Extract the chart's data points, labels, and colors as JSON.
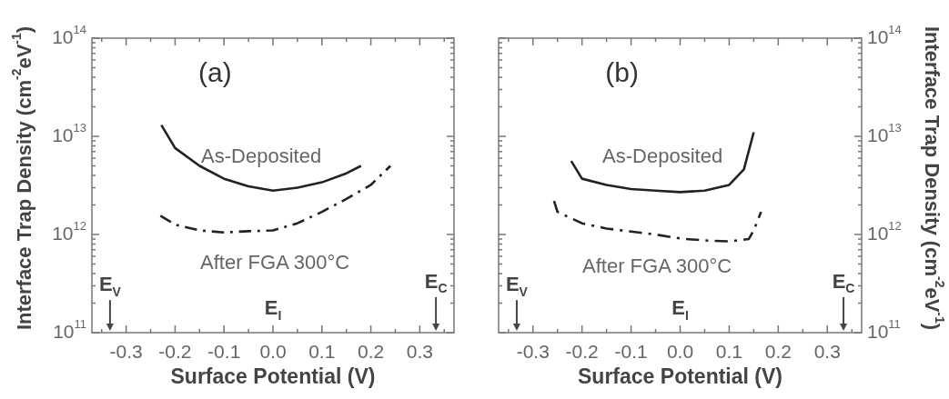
{
  "chart_data": [
    {
      "type": "line",
      "title": "(a)",
      "xlabel": "Surface Potential (V)",
      "ylabel": "Interface Trap Density (cm$^{-2}$eV$^{-1}$)",
      "log": "y",
      "xlim": [
        -0.37,
        0.37
      ],
      "xticks": [
        {
          "value": -0.35,
          "label": null
        },
        -0.3,
        {
          "value": -0.25,
          "label": null
        },
        -0.2,
        {
          "value": -0.15,
          "label": null
        },
        -0.1,
        {
          "value": -0.05,
          "label": null
        },
        {
          "value": 0,
          "label": "0.0"
        },
        {
          "value": 0.05,
          "label": null
        },
        0.1,
        {
          "value": 0.15,
          "label": null
        },
        0.2,
        {
          "value": 0.25,
          "label": null
        },
        0.3,
        {
          "value": 0.35,
          "label": null
        }
      ],
      "ylim": [
        100000000000.0,
        100000000000000.0
      ],
      "yticks": [
        {
          "value": 100000000000.0,
          "label": "10$^{11}$"
        },
        {
          "value": 200000000000.0,
          "label": null
        },
        {
          "value": 300000000000.0,
          "label": null
        },
        {
          "value": 400000000000.0,
          "label": null
        },
        {
          "value": 500000000000.0,
          "label": null
        },
        {
          "value": 600000000000.0,
          "label": null
        },
        {
          "value": 700000000000.0,
          "label": null
        },
        {
          "value": 800000000000.0,
          "label": null
        },
        {
          "value": 900000000000.0,
          "label": null
        },
        {
          "value": 1000000000000.0,
          "label": "10$^{12}$"
        },
        {
          "value": 2000000000000.0,
          "label": null
        },
        {
          "value": 3000000000000.0,
          "label": null
        },
        {
          "value": 4000000000000.0,
          "label": null
        },
        {
          "value": 5000000000000.0,
          "label": null
        },
        {
          "value": 6000000000000.0,
          "label": null
        },
        {
          "value": 7000000000000.0,
          "label": null
        },
        {
          "value": 8000000000000.0,
          "label": null
        },
        {
          "value": 9000000000000.0,
          "label": null
        },
        {
          "value": 10000000000000.0,
          "label": "10$^{13}$"
        },
        {
          "value": 20000000000000.0,
          "label": null
        },
        {
          "value": 30000000000000.0,
          "label": null
        },
        {
          "value": 40000000000000.0,
          "label": null
        },
        {
          "value": 50000000000000.0,
          "label": null
        },
        {
          "value": 60000000000000.0,
          "label": null
        },
        {
          "value": 70000000000000.0,
          "label": null
        },
        {
          "value": 80000000000000.0,
          "label": null
        },
        {
          "value": 90000000000000.0,
          "label": null
        },
        {
          "value": 100000000000000.0,
          "label": "10$^{14}$"
        }
      ],
      "series": [
        {
          "name": "As-Deposited",
          "color": "#222222",
          "line_style": "solid",
          "x": [
            -0.228,
            -0.2,
            -0.15,
            -0.1,
            -0.05,
            0,
            0.05,
            0.1,
            0.15,
            0.18
          ],
          "values": [
            13000000000000.0,
            7600000000000.0,
            5000000000000.0,
            3700000000000.0,
            3100000000000.0,
            2800000000000.0,
            3000000000000.0,
            3400000000000.0,
            4200000000000.0,
            5000000000000.0
          ]
        },
        {
          "name": "After FGA 300°C",
          "color": "#222222",
          "line_style": "dashdot",
          "x": [
            -0.23,
            -0.2,
            -0.15,
            -0.1,
            -0.05,
            0,
            0.05,
            0.1,
            0.15,
            0.2,
            0.24
          ],
          "values": [
            1550000000000.0,
            1260000000000.0,
            1100000000000.0,
            1050000000000.0,
            1080000000000.0,
            1100000000000.0,
            1300000000000.0,
            1700000000000.0,
            2300000000000.0,
            3200000000000.0,
            5000000000000.0
          ]
        }
      ],
      "annotations": [
        "E$_{V}$",
        "E$_{I}$",
        "E$_{C}$"
      ]
    },
    {
      "type": "line",
      "title": "(b)",
      "xlabel": "Surface Potential (V)",
      "y2label": "Interface Trap Density (cm$^{-2}$eV$^{-1}$)",
      "log": "y2",
      "xlim": [
        -0.37,
        0.37
      ],
      "xticks": [
        {
          "value": -0.35,
          "label": null
        },
        -0.3,
        {
          "value": -0.25,
          "label": null
        },
        -0.2,
        {
          "value": -0.15,
          "label": null
        },
        -0.1,
        {
          "value": -0.05,
          "label": null
        },
        {
          "value": 0,
          "label": "0.0"
        },
        {
          "value": 0.05,
          "label": null
        },
        0.1,
        {
          "value": 0.15,
          "label": null
        },
        0.2,
        {
          "value": 0.25,
          "label": null
        },
        0.3,
        {
          "value": 0.35,
          "label": null
        }
      ],
      "y2lim": [
        100000000000.0,
        100000000000000.0
      ],
      "y2ticks": [
        {
          "value": 100000000000.0,
          "label": "10$^{11}$"
        },
        {
          "value": 200000000000.0,
          "label": null
        },
        {
          "value": 300000000000.0,
          "label": null
        },
        {
          "value": 400000000000.0,
          "label": null
        },
        {
          "value": 500000000000.0,
          "label": null
        },
        {
          "value": 600000000000.0,
          "label": null
        },
        {
          "value": 700000000000.0,
          "label": null
        },
        {
          "value": 800000000000.0,
          "label": null
        },
        {
          "value": 900000000000.0,
          "label": null
        },
        {
          "value": 1000000000000.0,
          "label": "10$^{12}$"
        },
        {
          "value": 2000000000000.0,
          "label": null
        },
        {
          "value": 3000000000000.0,
          "label": null
        },
        {
          "value": 4000000000000.0,
          "label": null
        },
        {
          "value": 5000000000000.0,
          "label": null
        },
        {
          "value": 6000000000000.0,
          "label": null
        },
        {
          "value": 7000000000000.0,
          "label": null
        },
        {
          "value": 8000000000000.0,
          "label": null
        },
        {
          "value": 9000000000000.0,
          "label": null
        },
        {
          "value": 10000000000000.0,
          "label": "10$^{13}$"
        },
        {
          "value": 20000000000000.0,
          "label": null
        },
        {
          "value": 30000000000000.0,
          "label": null
        },
        {
          "value": 40000000000000.0,
          "label": null
        },
        {
          "value": 50000000000000.0,
          "label": null
        },
        {
          "value": 60000000000000.0,
          "label": null
        },
        {
          "value": 70000000000000.0,
          "label": null
        },
        {
          "value": 80000000000000.0,
          "label": null
        },
        {
          "value": 90000000000000.0,
          "label": null
        },
        {
          "value": 100000000000000.0,
          "label": "10$^{14}$"
        }
      ],
      "series": [
        {
          "name": "As-Deposited",
          "color": "#222222",
          "line_style": "solid",
          "axis": "y2",
          "x": [
            -0.222,
            -0.2,
            -0.15,
            -0.1,
            -0.05,
            0,
            0.05,
            0.1,
            0.13,
            0.15
          ],
          "values": [
            5600000000000.0,
            3700000000000.0,
            3200000000000.0,
            2900000000000.0,
            2800000000000.0,
            2700000000000.0,
            2800000000000.0,
            3200000000000.0,
            4600000000000.0,
            11000000000000.0
          ]
        },
        {
          "name": "After FGA 300°C",
          "color": "#222222",
          "line_style": "dashdot",
          "axis": "y2",
          "x": [
            -0.257,
            -0.25,
            -0.2,
            -0.15,
            -0.1,
            -0.05,
            0,
            0.05,
            0.1,
            0.14,
            0.15,
            0.165
          ],
          "values": [
            2200000000000.0,
            1700000000000.0,
            1300000000000.0,
            1150000000000.0,
            1070000000000.0,
            1000000000000.0,
            910000000000.0,
            870000000000.0,
            850000000000.0,
            900000000000.0,
            1100000000000.0,
            1700000000000.0
          ]
        }
      ],
      "annotations": [
        "E$_{V}$",
        "E$_{I}$",
        "E$_{C}$"
      ]
    }
  ]
}
